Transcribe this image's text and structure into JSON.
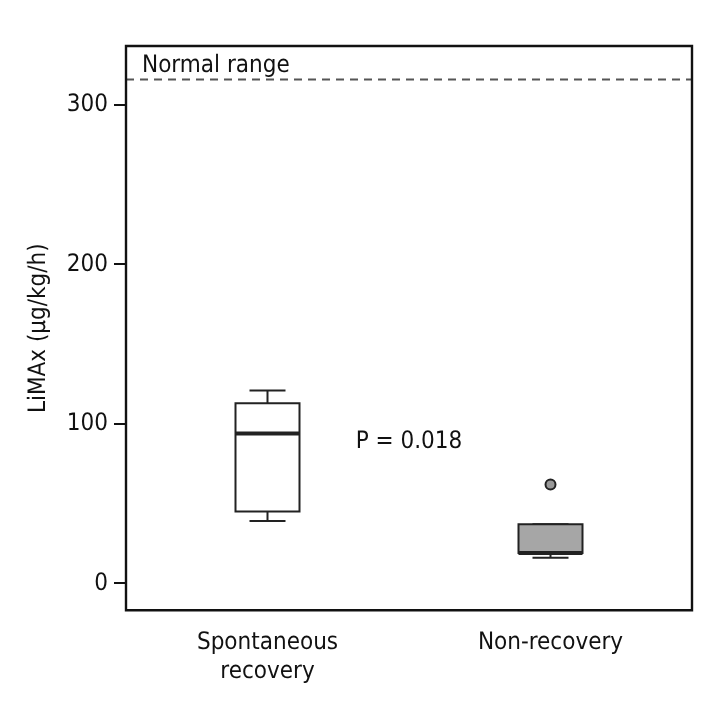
{
  "chart_data": {
    "type": "box",
    "ylabel": "LiMAx (µg/kg/h)",
    "categories": [
      "Spontaneous recovery",
      "Non-recovery"
    ],
    "colors": [
      "#ffffff",
      "#a6a6a6"
    ],
    "boxes": [
      {
        "low": 39,
        "q1": 45,
        "median": 94,
        "q3": 113,
        "high": 121
      },
      {
        "low": 16,
        "q1": 19,
        "median": 19,
        "q3": 37,
        "high": 37,
        "outliers": [
          62
        ]
      }
    ],
    "ylim": [
      -17,
      337
    ],
    "yticks": [
      0,
      100,
      200,
      300
    ],
    "grid": false,
    "ref_lines": [
      {
        "axis": "y",
        "value": 316,
        "label": "Normal range",
        "color": "#555555",
        "line_style": "dashed"
      }
    ],
    "annotations": [
      "P = 0.018"
    ]
  }
}
